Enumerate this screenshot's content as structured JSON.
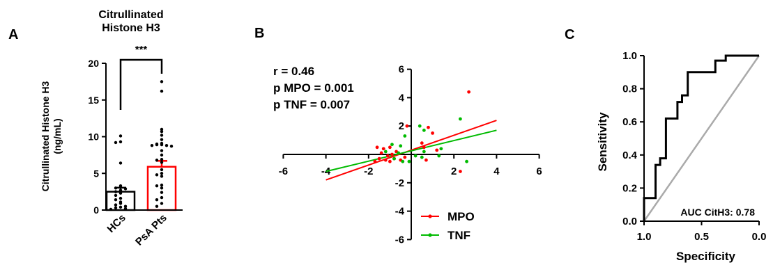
{
  "panel_labels": [
    "A",
    "B",
    "C"
  ],
  "chart_data": [
    {
      "type": "bar",
      "title": "Citrullinated\nHistone H3",
      "ylabel": "Citrullinated  Histone  H3\n(ng/mL)",
      "xlabel": "",
      "categories": [
        "HCs",
        "PsA Pts"
      ],
      "values": [
        2.5,
        5.9
      ],
      "sem": [
        0.55,
        0.8
      ],
      "ylim": [
        0,
        20
      ],
      "yticks": [
        "0",
        "5",
        "10",
        "15",
        "20"
      ],
      "significance": "***",
      "bar_colors": [
        "#000000",
        "#ff0000"
      ],
      "points": [
        [
          10.1,
          9.3,
          9.2,
          6.4,
          3.3,
          3.1,
          3.0,
          2.9,
          2.7,
          2.5,
          2.3,
          2.0,
          1.6,
          1.4,
          1.1,
          0.9,
          0.7,
          0.5,
          0.4,
          0.3,
          0.2,
          0.1
        ],
        [
          17.5,
          16.2,
          11.0,
          10.7,
          10.2,
          9.6,
          9.1,
          9.0,
          8.9,
          8.9,
          8.8,
          8.8,
          8.7,
          8.1,
          7.5,
          6.9,
          6.8,
          6.5,
          5.5,
          5.0,
          4.8,
          4.6,
          3.4,
          3.3,
          3.0,
          2.4,
          1.7,
          1.4,
          0.9,
          0.5
        ]
      ]
    },
    {
      "type": "scatter",
      "annotations": [
        "r = 0.46",
        "p MPO = 0.001",
        "p TNF = 0.007"
      ],
      "xlim": [
        -6,
        6
      ],
      "ylim": [
        -6,
        6
      ],
      "xticks": [
        "-6",
        "-4",
        "-2",
        "2",
        "4",
        "6"
      ],
      "yticks": [
        "6",
        "4",
        "2",
        "-2",
        "-4",
        "-6"
      ],
      "series": [
        {
          "name": "MPO",
          "color": "#ff0000",
          "points": [
            [
              -0.2,
              2.0
            ],
            [
              0.8,
              1.9
            ],
            [
              1.0,
              1.5
            ],
            [
              2.7,
              4.4
            ],
            [
              0.6,
              0.5
            ],
            [
              1.2,
              0.3
            ],
            [
              -1.6,
              0.5
            ],
            [
              -1.3,
              0.4
            ],
            [
              -1.0,
              0.5
            ],
            [
              -0.7,
              0.2
            ],
            [
              -1.4,
              0.1
            ],
            [
              -1.1,
              -0.1
            ],
            [
              -1.5,
              -0.3
            ],
            [
              -1.2,
              -0.4
            ],
            [
              -0.8,
              -0.3
            ],
            [
              -0.5,
              -0.4
            ],
            [
              -0.3,
              -0.2
            ],
            [
              -1.0,
              -0.5
            ],
            [
              0.5,
              0.8
            ],
            [
              0.7,
              -0.4
            ],
            [
              -0.9,
              0.0
            ],
            [
              2.3,
              -1.2
            ],
            [
              -1.7,
              -0.5
            ]
          ],
          "fit": [
            [
              -4,
              -1.8
            ],
            [
              4,
              2.4
            ]
          ]
        },
        {
          "name": "TNF",
          "color": "#00bb00",
          "points": [
            [
              0.4,
              2.0
            ],
            [
              0.6,
              1.7
            ],
            [
              2.3,
              2.5
            ],
            [
              -0.3,
              1.3
            ],
            [
              -0.5,
              0.6
            ],
            [
              -0.9,
              0.7
            ],
            [
              -1.2,
              0.2
            ],
            [
              0.6,
              0.2
            ],
            [
              1.4,
              0.4
            ],
            [
              0.2,
              -0.1
            ],
            [
              -0.8,
              -0.3
            ],
            [
              -0.4,
              -0.5
            ],
            [
              0.5,
              -0.2
            ],
            [
              1.3,
              -0.1
            ],
            [
              2.6,
              -0.5
            ],
            [
              -0.1,
              -0.5
            ],
            [
              -0.6,
              0.1
            ]
          ],
          "fit": [
            [
              -4,
              -1.2
            ],
            [
              4,
              1.7
            ]
          ]
        }
      ]
    },
    {
      "type": "line",
      "xlabel": "Specificity",
      "ylabel": "Sensitivity",
      "xlim": [
        1.0,
        0.0
      ],
      "ylim": [
        0.0,
        1.0
      ],
      "xticks": [
        "1.0",
        "0.5",
        "0.0"
      ],
      "yticks": [
        "0.0",
        "0.2",
        "0.4",
        "0.6",
        "0.8",
        "1.0"
      ],
      "annotation": "AUC CitH3: 0.78",
      "roc": [
        [
          1.0,
          0.0
        ],
        [
          1.0,
          0.14
        ],
        [
          0.9,
          0.14
        ],
        [
          0.9,
          0.34
        ],
        [
          0.86,
          0.34
        ],
        [
          0.86,
          0.38
        ],
        [
          0.81,
          0.38
        ],
        [
          0.81,
          0.62
        ],
        [
          0.71,
          0.62
        ],
        [
          0.71,
          0.72
        ],
        [
          0.67,
          0.72
        ],
        [
          0.67,
          0.76
        ],
        [
          0.62,
          0.76
        ],
        [
          0.62,
          0.9
        ],
        [
          0.38,
          0.9
        ],
        [
          0.38,
          0.97
        ],
        [
          0.29,
          0.97
        ],
        [
          0.29,
          1.0
        ],
        [
          0.0,
          1.0
        ]
      ],
      "reference": [
        [
          1.0,
          0.0
        ],
        [
          0.0,
          1.0
        ]
      ],
      "roc_color": "#000000",
      "reference_color": "#aaaaaa"
    }
  ]
}
